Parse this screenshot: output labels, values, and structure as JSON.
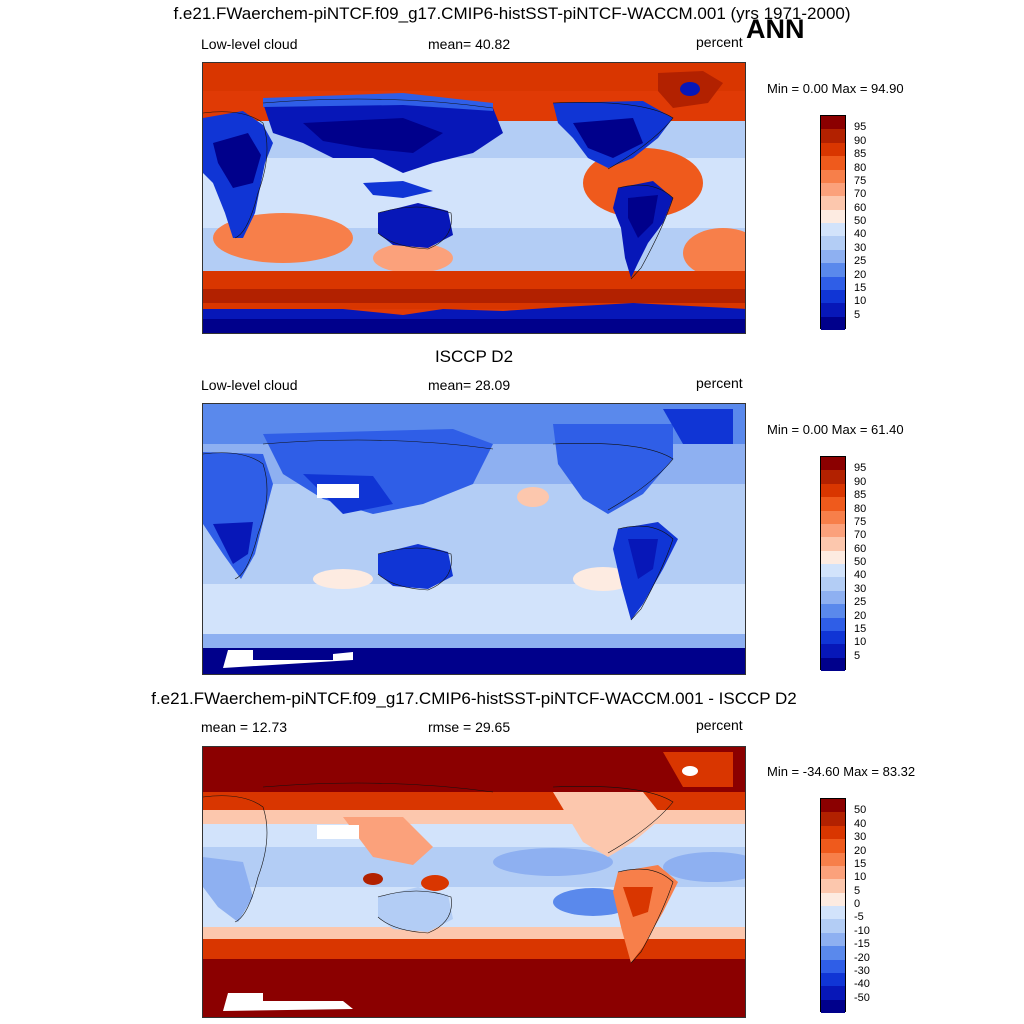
{
  "season": "ANN",
  "panels": [
    {
      "title": "f.e21.FWaerchem-piNTCF.f09_g17.CMIP6-histSST-piNTCF-WACCM.001 (yrs 1971-2000)",
      "left_label": "Low-level cloud",
      "center_label": "mean=  40.82",
      "right_label": "percent",
      "minmax": "Min =   0.00 Max =  94.90",
      "colorbar": {
        "labels": [
          "95",
          "90",
          "85",
          "80",
          "75",
          "70",
          "60",
          "50",
          "40",
          "30",
          "25",
          "20",
          "15",
          "10",
          "5"
        ],
        "colors": [
          "#8b0000",
          "#b22100",
          "#d93600",
          "#ef5a1c",
          "#f77f4a",
          "#fba17b",
          "#fcc7ad",
          "#fdebe1",
          "#d2e3fb",
          "#b3cdf5",
          "#8eb0f1",
          "#5a89ec",
          "#2f5ee7",
          "#1035d5",
          "#0717b8",
          "#00008b"
        ]
      }
    },
    {
      "title": "ISCCP D2",
      "left_label": "Low-level cloud",
      "center_label": "mean=  28.09",
      "right_label": "percent",
      "minmax": "Min =   0.00 Max =  61.40",
      "colorbar": {
        "labels": [
          "95",
          "90",
          "85",
          "80",
          "75",
          "70",
          "60",
          "50",
          "40",
          "30",
          "25",
          "20",
          "15",
          "10",
          "5"
        ],
        "colors": [
          "#8b0000",
          "#b22100",
          "#d93600",
          "#ef5a1c",
          "#f77f4a",
          "#fba17b",
          "#fcc7ad",
          "#fdebe1",
          "#d2e3fb",
          "#b3cdf5",
          "#8eb0f1",
          "#5a89ec",
          "#2f5ee7",
          "#1035d5",
          "#0717b8",
          "#00008b"
        ]
      }
    },
    {
      "title": "f.e21.FWaerchem-piNTCF.f09_g17.CMIP6-histSST-piNTCF-WACCM.001 - ISCCP D2",
      "left_label": "mean =  12.73",
      "center_label": "rmse =  29.65",
      "right_label": "percent",
      "minmax": "Min = -34.60 Max =  83.32",
      "colorbar": {
        "labels": [
          "50",
          "40",
          "30",
          "20",
          "15",
          "10",
          "5",
          "0",
          "-5",
          "-10",
          "-15",
          "-20",
          "-30",
          "-40",
          "-50"
        ],
        "colors": [
          "#8b0000",
          "#b22100",
          "#d93600",
          "#ef5a1c",
          "#f77f4a",
          "#fba17b",
          "#fcc7ad",
          "#fdebe1",
          "#d2e3fb",
          "#b3cdf5",
          "#8eb0f1",
          "#5a89ec",
          "#2f5ee7",
          "#1035d5",
          "#0717b8",
          "#00008b"
        ]
      }
    }
  ]
}
